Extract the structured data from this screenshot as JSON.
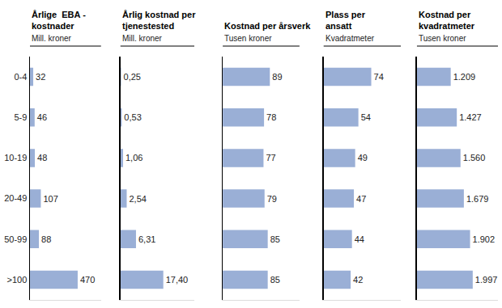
{
  "chart_data": [
    {
      "type": "bar",
      "orientation": "horizontal",
      "title": "Årlige  EBA -\nkostnader",
      "subtitle": "Mill. kroner",
      "categories": [
        "0-4",
        "5-9",
        "10-19",
        "20-49",
        "50-99",
        ">100"
      ],
      "values": [
        32,
        46,
        48,
        107,
        88,
        470
      ],
      "xlim": [
        0,
        700
      ],
      "color": "#9aafd6",
      "data_labels": true,
      "tick_labels": "y"
    },
    {
      "type": "bar",
      "orientation": "horizontal",
      "title": "Årlig kostnad per\ntjenestested",
      "subtitle": "Mill. kroner",
      "categories": [
        "0-4",
        "5-9",
        "10-19",
        "20-49",
        "50-99",
        ">100"
      ],
      "values": [
        0.25,
        0.53,
        1.06,
        2.54,
        6.31,
        17.4
      ],
      "value_labels": [
        "0,25",
        "0,53",
        "1,06",
        "2,54",
        "6,31",
        "17,40"
      ],
      "xlim": [
        0,
        30
      ],
      "color": "#9aafd6",
      "data_labels": true,
      "tick_labels": false
    },
    {
      "type": "bar",
      "orientation": "horizontal",
      "title": "Kostnad per årsverk",
      "subtitle": "Tusen kroner",
      "categories": [
        "0-4",
        "5-9",
        "10-19",
        "20-49",
        "50-99",
        ">100"
      ],
      "values": [
        89,
        78,
        77,
        79,
        85,
        85
      ],
      "xlim": [
        0,
        145
      ],
      "color": "#9aafd6",
      "data_labels": true,
      "tick_labels": false
    },
    {
      "type": "bar",
      "orientation": "horizontal",
      "title": "Plass per\nansatt",
      "subtitle": "Kvadratmeter",
      "categories": [
        "0-4",
        "5-9",
        "10-19",
        "20-49",
        "50-99",
        ">100"
      ],
      "values": [
        74,
        54,
        49,
        47,
        44,
        42
      ],
      "xlim": [
        0,
        120
      ],
      "color": "#9aafd6",
      "data_labels": true,
      "tick_labels": false
    },
    {
      "type": "bar",
      "orientation": "horizontal",
      "title": "Kostnad per\nkvadratmeter",
      "subtitle": "Tusen kroner",
      "categories": [
        "0-4",
        "5-9",
        "10-19",
        "20-49",
        "50-99",
        ">100"
      ],
      "values": [
        1209,
        1427,
        1560,
        1679,
        1902,
        1997
      ],
      "value_labels": [
        "1.209",
        "1.427",
        "1.560",
        "1.679",
        "1.902",
        "1.997"
      ],
      "xlim": [
        0,
        2900
      ],
      "color": "#9aafd6",
      "data_labels": true,
      "tick_labels": false
    }
  ]
}
